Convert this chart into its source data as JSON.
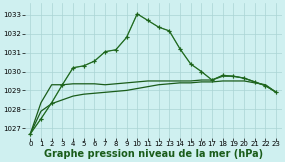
{
  "background_color": "#cff0f0",
  "grid_color": "#aad4d4",
  "line_color_dark": "#1a5c1a",
  "line_color_mid": "#2e7d2e",
  "xlabel": "Graphe pression niveau de la mer (hPa)",
  "xlabel_fontsize": 7,
  "xlim": [
    -0.5,
    23.5
  ],
  "ylim": [
    1026.5,
    1033.6
  ],
  "yticks": [
    1027,
    1028,
    1029,
    1030,
    1031,
    1032,
    1033
  ],
  "xticks": [
    0,
    1,
    2,
    3,
    4,
    5,
    6,
    7,
    8,
    9,
    10,
    11,
    12,
    13,
    14,
    15,
    16,
    17,
    18,
    19,
    20,
    21,
    22,
    23
  ],
  "series1": [
    1026.7,
    1027.5,
    1028.35,
    1029.3,
    1030.2,
    1030.3,
    1030.55,
    1031.05,
    1031.15,
    1031.8,
    1033.05,
    1032.7,
    1032.35,
    1032.15,
    1031.2,
    1030.4,
    1030.0,
    1029.55,
    1029.8,
    1029.75,
    1029.65,
    1029.45,
    1029.25,
    1028.9
  ],
  "series2": [
    1026.7,
    1028.35,
    1029.3,
    1029.3,
    1029.35,
    1029.35,
    1029.35,
    1029.3,
    1029.35,
    1029.4,
    1029.45,
    1029.5,
    1029.5,
    1029.5,
    1029.5,
    1029.5,
    1029.55,
    1029.55,
    1029.75,
    1029.75,
    1029.65,
    1029.45,
    1029.25,
    1028.9
  ],
  "series3": [
    1026.7,
    1027.9,
    1028.3,
    1028.5,
    1028.7,
    1028.8,
    1028.85,
    1028.9,
    1028.95,
    1029.0,
    1029.1,
    1029.2,
    1029.3,
    1029.35,
    1029.4,
    1029.4,
    1029.45,
    1029.45,
    1029.5,
    1029.5,
    1029.5,
    1029.4,
    1029.3,
    1028.9
  ]
}
